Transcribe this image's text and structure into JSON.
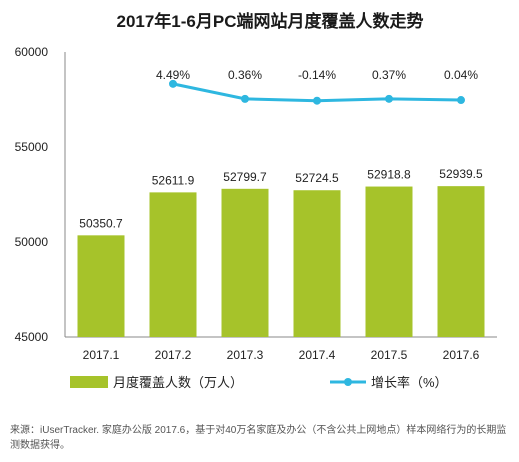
{
  "chart_data": {
    "type": "bar+line",
    "title": "2017年1-6月PC端网站月度覆盖人数走势",
    "categories": [
      "2017.1",
      "2017.2",
      "2017.3",
      "2017.4",
      "2017.5",
      "2017.6"
    ],
    "bar_series": {
      "name": "月度覆盖人数（万人）",
      "values": [
        50350.7,
        52611.9,
        52799.7,
        52724.5,
        52918.8,
        52939.5
      ],
      "labels": [
        "50350.7",
        "52611.9",
        "52799.7",
        "52724.5",
        "52918.8",
        "52939.5"
      ],
      "color": "#a6c32a"
    },
    "line_series": {
      "name": "增长率（%）",
      "values": [
        4.49,
        0.36,
        -0.14,
        0.37,
        0.04
      ],
      "labels": [
        "4.49%",
        "0.36%",
        "-0.14%",
        "0.37%",
        "0.04%"
      ],
      "color": "#2eb7e0",
      "starts_at_index": 1
    },
    "y_axis": {
      "ticks": [
        "60000",
        "55000",
        "50000",
        "45000"
      ],
      "ylim": [
        45000,
        60000
      ]
    },
    "legend_position": "bottom",
    "grid": false
  },
  "footnote": "来源：iUserTracker. 家庭办公版 2017.6，基于对40万名家庭及办公（不含公共上网地点）样本网络行为的长期监测数据获得。"
}
